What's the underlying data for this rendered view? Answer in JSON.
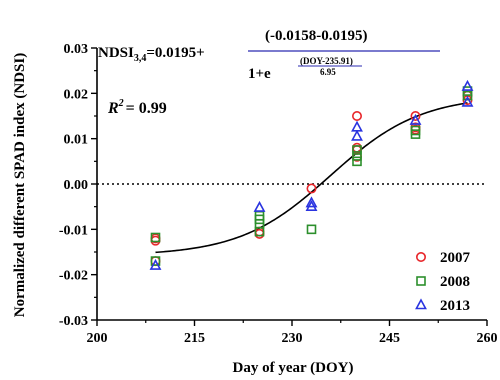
{
  "chart_data": {
    "type": "scatter",
    "xlabel": "Day of year (DOY)",
    "ylabel": "Normalized different SPAD index (NDSI)",
    "xlim": [
      200,
      260
    ],
    "ylim": [
      -0.03,
      0.03
    ],
    "x_ticks": [
      "200",
      "215",
      "230",
      "245",
      "260"
    ],
    "y_ticks": [
      "-0.03",
      "-0.02",
      "-0.01",
      "0.00",
      "0.01",
      "0.02",
      "0.03"
    ],
    "x_tick_values": [
      200,
      215,
      230,
      245,
      260
    ],
    "y_tick_values": [
      -0.03,
      -0.02,
      -0.01,
      0.0,
      0.01,
      0.02,
      0.03
    ],
    "reference_line": {
      "y": 0.0,
      "style": "dotted"
    },
    "equation": {
      "lhs_main": "NDSI",
      "lhs_sub": "3,4",
      "lhs_rest": "=0.0195+",
      "numerator": "(-0.0158-0.0195)",
      "denominator_base": "1+e",
      "exponent_numerator": "(DOY-235.91)",
      "exponent_denominator": "6.95"
    },
    "r2": {
      "label": "R",
      "sup": "2",
      "rest": "= 0.99"
    },
    "fit": {
      "A1": 0.0195,
      "A2": -0.0158,
      "x0": 235.91,
      "dx": 6.95,
      "x_range": [
        209,
        257
      ]
    },
    "series": [
      {
        "name": "2007",
        "marker": "circle",
        "color": "#e8262a",
        "points": [
          [
            209,
            -0.012
          ],
          [
            209,
            -0.0125
          ],
          [
            209,
            -0.017
          ],
          [
            225,
            -0.0105
          ],
          [
            225,
            -0.011
          ],
          [
            233,
            -0.001
          ],
          [
            240,
            0.015
          ],
          [
            240,
            0.008
          ],
          [
            240,
            0.0075
          ],
          [
            240,
            0.006
          ],
          [
            249,
            0.015
          ],
          [
            249,
            0.0125
          ],
          [
            249,
            0.012
          ],
          [
            257,
            0.0195
          ],
          [
            257,
            0.0185
          ]
        ]
      },
      {
        "name": "2008",
        "marker": "square",
        "color": "#2c8f2c",
        "points": [
          [
            209,
            -0.0118
          ],
          [
            209,
            -0.017
          ],
          [
            225,
            -0.007
          ],
          [
            225,
            -0.0078
          ],
          [
            225,
            -0.0088
          ],
          [
            225,
            -0.0105
          ],
          [
            233,
            -0.01
          ],
          [
            240,
            0.005
          ],
          [
            240,
            0.0062
          ],
          [
            240,
            0.0075
          ],
          [
            249,
            0.011
          ],
          [
            249,
            0.0118
          ],
          [
            257,
            0.0195
          ],
          [
            257,
            0.0205
          ]
        ]
      },
      {
        "name": "2013",
        "marker": "triangle",
        "color": "#2a34e0",
        "points": [
          [
            209,
            -0.018
          ],
          [
            225,
            -0.0052
          ],
          [
            233,
            -0.0042
          ],
          [
            233,
            -0.005
          ],
          [
            240,
            0.0105
          ],
          [
            240,
            0.0125
          ],
          [
            249,
            0.014
          ],
          [
            257,
            0.018
          ],
          [
            257,
            0.0215
          ]
        ]
      }
    ]
  }
}
